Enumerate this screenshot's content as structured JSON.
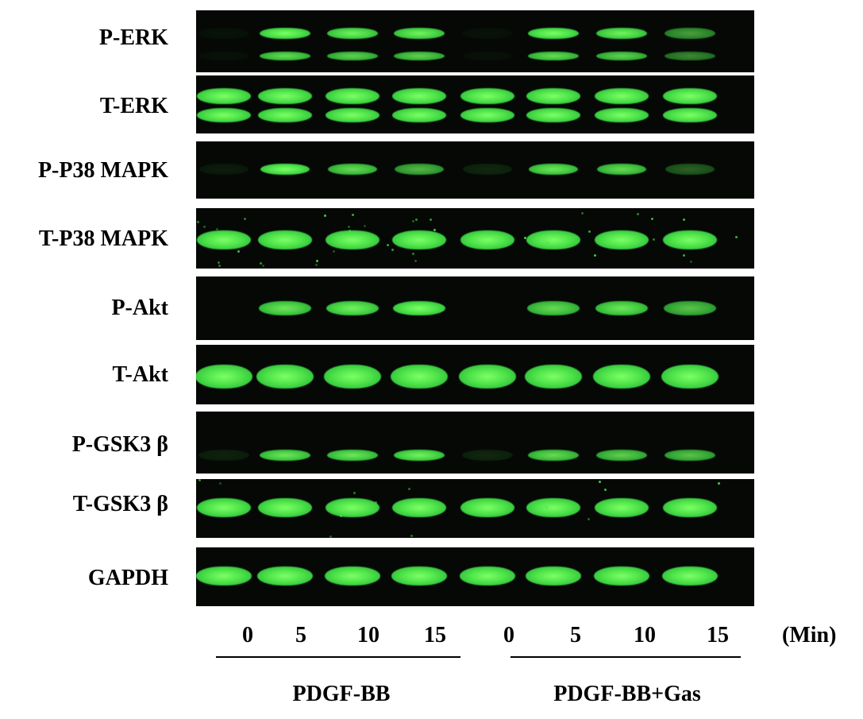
{
  "rows": [
    {
      "label": "P-ERK"
    },
    {
      "label": "T-ERK"
    },
    {
      "label": "P-P38 MAPK"
    },
    {
      "label": "T-P38 MAPK"
    },
    {
      "label": "P-Akt"
    },
    {
      "label": "T-Akt"
    },
    {
      "label": "P-GSK3 β"
    },
    {
      "label": "T-GSK3 β"
    },
    {
      "label": "GAPDH"
    }
  ],
  "lanes": [
    "0",
    "5",
    "10",
    "15",
    "0",
    "5",
    "10",
    "15"
  ],
  "unit": "(Min)",
  "groups": [
    {
      "label": "PDGF-BB"
    },
    {
      "label": "PDGF-BB+Gas"
    }
  ],
  "band_color": "#4fe34a",
  "background_color": "#050805"
}
